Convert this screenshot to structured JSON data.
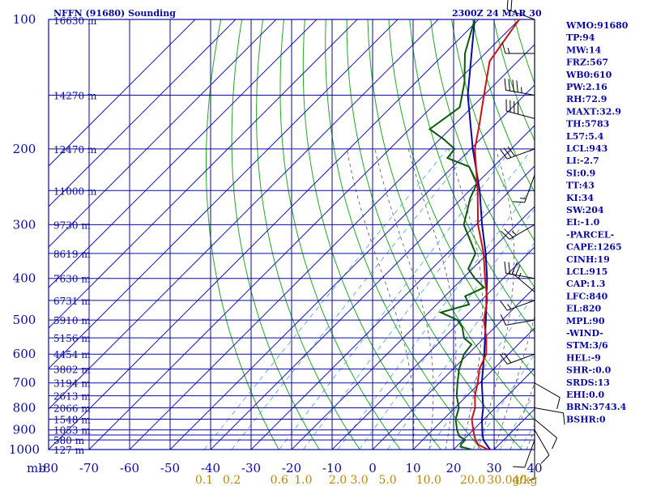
{
  "header": {
    "title": "NFFN (91680) Sounding",
    "time": "2300Z 24 MAR 30"
  },
  "colors": {
    "frame": "#0a0aa0",
    "isotherm": "#1a1ab4",
    "dry_adiabat": "#22a822",
    "moist_adiabat": "#555555",
    "mixing_ratio": "#4aa0e0",
    "temperature": "#d01010",
    "dewpoint": "#0a5a0a",
    "parcel": "#0a0aa0",
    "wind_barb": "#000000"
  },
  "chart_data": {
    "type": "line",
    "title": "NFFN (91680) Sounding",
    "x_unit_label": "mb",
    "pressure_levels": [
      100,
      200,
      300,
      400,
      500,
      600,
      700,
      800,
      900,
      1000
    ],
    "pressure_labels": [
      "100",
      "200",
      "300",
      "400",
      "500",
      "600",
      "700",
      "800",
      "900",
      "1000"
    ],
    "grid_pressures": [
      100,
      150,
      200,
      250,
      300,
      350,
      400,
      450,
      500,
      550,
      600,
      650,
      700,
      750,
      800,
      850,
      900,
      925,
      950,
      1000
    ],
    "temperature_ticks": [
      -80,
      -70,
      -60,
      -50,
      -40,
      -30,
      -20,
      -10,
      0,
      10,
      20,
      30,
      40
    ],
    "temperature_tick_labels": [
      "-80",
      "-70",
      "-60",
      "-50",
      "-40",
      "-30",
      "-20",
      "-10",
      "0",
      "10",
      "20",
      "30",
      "40"
    ],
    "heights": [
      {
        "p": 100,
        "label": "16630 m"
      },
      {
        "p": 150,
        "label": "14270 m"
      },
      {
        "p": 200,
        "label": "12470 m"
      },
      {
        "p": 250,
        "label": "11000 m"
      },
      {
        "p": 300,
        "label": "9730 m"
      },
      {
        "p": 350,
        "label": "8619 m"
      },
      {
        "p": 400,
        "label": "7630 m"
      },
      {
        "p": 450,
        "label": "6731 m"
      },
      {
        "p": 500,
        "label": "5910 m"
      },
      {
        "p": 550,
        "label": "5156 m"
      },
      {
        "p": 600,
        "label": "4454 m"
      },
      {
        "p": 650,
        "label": "3802 m"
      },
      {
        "p": 700,
        "label": "3194 m"
      },
      {
        "p": 750,
        "label": "2613 m"
      },
      {
        "p": 800,
        "label": "2066 m"
      },
      {
        "p": 850,
        "label": "1548 m"
      },
      {
        "p": 900,
        "label": "1053 m"
      },
      {
        "p": 950,
        "label": "580 m"
      },
      {
        "p": 1000,
        "label": "127 m"
      }
    ],
    "mixing_ratio_labels": [
      "0.1",
      "0.2",
      "0.6",
      "1.0",
      "2.0",
      "3.0",
      "5.0",
      "10.0",
      "20.0",
      "30.0",
      "40.0"
    ],
    "mixing_ratio_unit": "g/kg",
    "mixing_ratio_label_text": [
      "0.1",
      "0.2",
      "0.6",
      "1.0",
      "2.0",
      "3.0",
      "5.0",
      "10.0",
      "20.0",
      "30.0",
      "40",
      "g/kg"
    ],
    "dry_adiabats_theta_K": [
      250,
      260,
      270,
      280,
      290,
      300,
      310,
      320,
      330,
      340,
      350,
      360,
      370,
      380,
      390,
      400,
      410,
      420,
      430,
      440,
      450,
      460,
      470,
      480,
      490,
      500
    ],
    "moist_adiabats_thetaw_C": [
      10,
      14,
      18,
      22,
      26,
      30,
      34,
      38
    ],
    "temperature": [
      {
        "p": 1000,
        "t": 28.5
      },
      {
        "p": 975,
        "t": 25.0
      },
      {
        "p": 950,
        "t": 23.0
      },
      {
        "p": 925,
        "t": 21.5
      },
      {
        "p": 900,
        "t": 20.0
      },
      {
        "p": 850,
        "t": 17.0
      },
      {
        "p": 800,
        "t": 15.0
      },
      {
        "p": 750,
        "t": 12.0
      },
      {
        "p": 700,
        "t": 9.5
      },
      {
        "p": 650,
        "t": 6.5
      },
      {
        "p": 600,
        "t": 4.5
      },
      {
        "p": 550,
        "t": 0.5
      },
      {
        "p": 500,
        "t": -4.5
      },
      {
        "p": 450,
        "t": -8.5
      },
      {
        "p": 400,
        "t": -14.5
      },
      {
        "p": 350,
        "t": -21.0
      },
      {
        "p": 300,
        "t": -29.5
      },
      {
        "p": 250,
        "t": -38.0
      },
      {
        "p": 200,
        "t": -49.0
      },
      {
        "p": 175,
        "t": -54.0
      },
      {
        "p": 150,
        "t": -60.0
      },
      {
        "p": 125,
        "t": -67.0
      },
      {
        "p": 100,
        "t": -70.0
      }
    ],
    "dewpoint": [
      {
        "p": 1000,
        "t": 24.5
      },
      {
        "p": 985,
        "t": 21.0
      },
      {
        "p": 970,
        "t": 20.5
      },
      {
        "p": 950,
        "t": 20.5
      },
      {
        "p": 930,
        "t": 18.0
      },
      {
        "p": 900,
        "t": 16.0
      },
      {
        "p": 850,
        "t": 13.0
      },
      {
        "p": 800,
        "t": 11.0
      },
      {
        "p": 750,
        "t": 7.5
      },
      {
        "p": 700,
        "t": 4.5
      },
      {
        "p": 650,
        "t": 1.5
      },
      {
        "p": 600,
        "t": -1.0
      },
      {
        "p": 570,
        "t": -1.5
      },
      {
        "p": 550,
        "t": -5.0
      },
      {
        "p": 520,
        "t": -8.0
      },
      {
        "p": 500,
        "t": -11.0
      },
      {
        "p": 480,
        "t": -17.0
      },
      {
        "p": 460,
        "t": -12.0
      },
      {
        "p": 440,
        "t": -15.0
      },
      {
        "p": 420,
        "t": -12.5
      },
      {
        "p": 400,
        "t": -17.0
      },
      {
        "p": 380,
        "t": -21.0
      },
      {
        "p": 350,
        "t": -23.0
      },
      {
        "p": 300,
        "t": -33.0
      },
      {
        "p": 260,
        "t": -38.0
      },
      {
        "p": 240,
        "t": -40.0
      },
      {
        "p": 220,
        "t": -46.0
      },
      {
        "p": 210,
        "t": -53.5
      },
      {
        "p": 200,
        "t": -54.0
      },
      {
        "p": 190,
        "t": -59.0
      },
      {
        "p": 180,
        "t": -65.0
      },
      {
        "p": 160,
        "t": -63.0
      },
      {
        "p": 140,
        "t": -68.0
      },
      {
        "p": 120,
        "t": -75.0
      },
      {
        "p": 100,
        "t": -81.0
      }
    ],
    "parcel": [
      {
        "p": 1000,
        "t": 29.0
      },
      {
        "p": 950,
        "t": 25.0
      },
      {
        "p": 915,
        "t": 23.0
      },
      {
        "p": 850,
        "t": 19.5
      },
      {
        "p": 800,
        "t": 17.0
      },
      {
        "p": 700,
        "t": 10.5
      },
      {
        "p": 600,
        "t": 4.0
      },
      {
        "p": 500,
        "t": -4.0
      },
      {
        "p": 400,
        "t": -14.0
      },
      {
        "p": 350,
        "t": -20.5
      },
      {
        "p": 300,
        "t": -28.5
      },
      {
        "p": 250,
        "t": -37.5
      },
      {
        "p": 200,
        "t": -49.5
      },
      {
        "p": 150,
        "t": -64.0
      },
      {
        "p": 100,
        "t": -81.0
      }
    ],
    "wind_barbs": [
      {
        "p": 100,
        "dir": 290,
        "kt": 20
      },
      {
        "p": 120,
        "dir": 270,
        "kt": 15
      },
      {
        "p": 150,
        "dir": 280,
        "kt": 45
      },
      {
        "p": 170,
        "dir": 285,
        "kt": 40
      },
      {
        "p": 200,
        "dir": 250,
        "kt": 30
      },
      {
        "p": 230,
        "dir": 200,
        "kt": 15
      },
      {
        "p": 300,
        "dir": 240,
        "kt": 25
      },
      {
        "p": 400,
        "dir": 280,
        "kt": 20
      },
      {
        "p": 430,
        "dir": 310,
        "kt": 25
      },
      {
        "p": 450,
        "dir": 250,
        "kt": 15
      },
      {
        "p": 500,
        "dir": 260,
        "kt": 10
      },
      {
        "p": 600,
        "dir": 250,
        "kt": 20
      },
      {
        "p": 700,
        "dir": 120,
        "kt": 10
      },
      {
        "p": 800,
        "dir": 100,
        "kt": 10
      },
      {
        "p": 850,
        "dir": 130,
        "kt": 10
      },
      {
        "p": 900,
        "dir": 150,
        "kt": 10
      },
      {
        "p": 950,
        "dir": 200,
        "kt": 10
      },
      {
        "p": 1000,
        "dir": 180,
        "kt": 5
      }
    ]
  },
  "indices": [
    "WMO:91680",
    "TP:94",
    "MW:14",
    "FRZ:567",
    "WB0:610",
    "PW:2.16",
    "RH:72.9",
    "MAXT:32.9",
    "TH:5783",
    "L57:5.4",
    "LCL:943",
    "LI:-2.7",
    "SI:0.9",
    "TT:43",
    "KI:34",
    "SW:204",
    "EI:-1.0",
    "-PARCEL-",
    "CAPE:1265",
    "CINH:19",
    "LCL:915",
    "CAP:1.3",
    "LFC:840",
    "EL:820",
    "MPL:90",
    "-WIND-",
    "STM:3/6",
    "HEL:-9",
    "SHR-:0.0",
    "SRDS:13",
    "EHI:0.0",
    "BRN:3743.4",
    "BSHR:0"
  ]
}
